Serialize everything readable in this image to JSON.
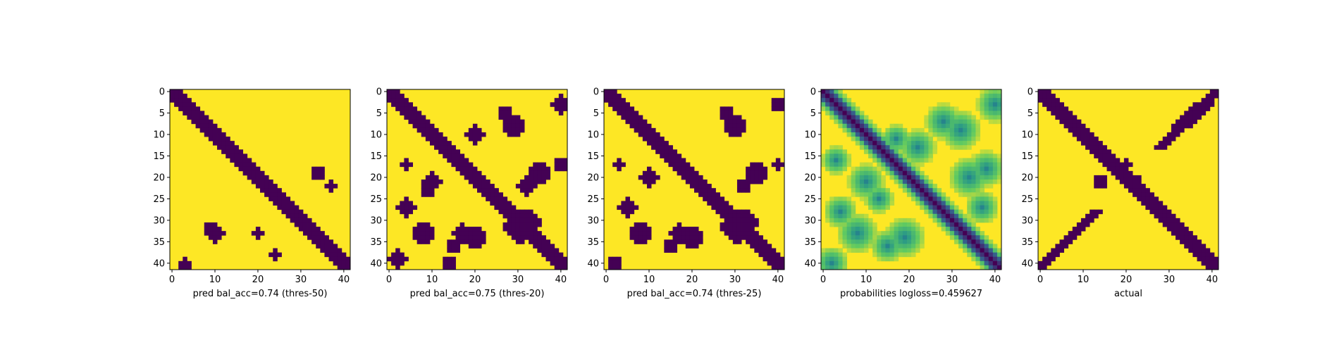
{
  "colors": {
    "dark": "#440154",
    "light": "#fde725",
    "viridis_mid_teal": "#21918c"
  },
  "chart_data": [
    {
      "type": "heatmap",
      "xlabel": "pred bal_acc=0.74 (thres-50)",
      "grid_size": 42,
      "xlim": [
        0,
        41
      ],
      "ylim": [
        41,
        0
      ],
      "xticks": [
        0,
        10,
        20,
        30,
        40
      ],
      "yticks": [
        0,
        5,
        10,
        15,
        20,
        25,
        30,
        35,
        40
      ],
      "colormap": "binary viridis",
      "diag_band_halfwidth": 2,
      "cross_band": false,
      "blobs": [
        [
          40,
          3,
          1.2
        ],
        [
          33,
          10,
          2.0
        ],
        [
          19,
          34,
          1.5
        ],
        [
          22,
          37,
          1.0
        ],
        [
          32,
          9,
          1.5
        ],
        [
          33,
          20,
          1.0
        ],
        [
          38,
          24,
          1.0
        ],
        [
          41,
          3,
          1.0
        ]
      ]
    },
    {
      "type": "heatmap",
      "xlabel": "pred bal_acc=0.75 (thres-20)",
      "grid_size": 42,
      "xlim": [
        0,
        41
      ],
      "ylim": [
        41,
        0
      ],
      "xticks": [
        0,
        10,
        20,
        30,
        40
      ],
      "yticks": [
        0,
        5,
        10,
        15,
        20,
        25,
        30,
        35,
        40
      ],
      "colormap": "binary viridis",
      "diag_band_halfwidth": 2,
      "cross_band": true,
      "blobs": [
        [
          3,
          40,
          2.0
        ],
        [
          8,
          29,
          2.8
        ],
        [
          10,
          20,
          2.0
        ],
        [
          5,
          27,
          1.5
        ],
        [
          17,
          40,
          1.5
        ],
        [
          19,
          35,
          2.5
        ],
        [
          22,
          32,
          2.0
        ],
        [
          21,
          10,
          2.0
        ],
        [
          23,
          9,
          1.5
        ],
        [
          33,
          8,
          2.5
        ],
        [
          27,
          4,
          2.0
        ],
        [
          34,
          20,
          2.5
        ],
        [
          33,
          17,
          2.0
        ],
        [
          36,
          15,
          1.5
        ],
        [
          39,
          2,
          2.0
        ],
        [
          40,
          14,
          1.5
        ],
        [
          17,
          4,
          1.0
        ]
      ]
    },
    {
      "type": "heatmap",
      "xlabel": "pred bal_acc=0.74 (thres-25)",
      "grid_size": 42,
      "xlim": [
        0,
        41
      ],
      "ylim": [
        41,
        0
      ],
      "xticks": [
        0,
        10,
        20,
        30,
        40
      ],
      "yticks": [
        0,
        5,
        10,
        15,
        20,
        25,
        30,
        35,
        40
      ],
      "colormap": "binary viridis",
      "diag_band_halfwidth": 2,
      "cross_band": true,
      "blobs": [
        [
          3,
          40,
          1.5
        ],
        [
          8,
          30,
          2.8
        ],
        [
          5,
          28,
          1.5
        ],
        [
          17,
          40,
          1.2
        ],
        [
          19,
          35,
          2.5
        ],
        [
          22,
          32,
          1.8
        ],
        [
          20,
          10,
          2.0
        ],
        [
          33,
          8,
          2.5
        ],
        [
          27,
          5,
          2.0
        ],
        [
          34,
          20,
          2.5
        ],
        [
          33,
          17,
          2.0
        ],
        [
          36,
          15,
          1.5
        ],
        [
          40,
          2,
          1.5
        ],
        [
          17,
          3,
          1.0
        ]
      ]
    },
    {
      "type": "heatmap",
      "xlabel": "probabilities logloss=0.459627",
      "grid_size": 42,
      "xlim": [
        0,
        41
      ],
      "ylim": [
        41,
        0
      ],
      "xticks": [
        0,
        10,
        20,
        30,
        40
      ],
      "yticks": [
        0,
        5,
        10,
        15,
        20,
        25,
        30,
        35,
        40
      ],
      "colormap": "viridis",
      "diag_band_halfwidth": 2,
      "cross_band": false,
      "blobs": [
        [
          3,
          40,
          2.5
        ],
        [
          7,
          28,
          2.5
        ],
        [
          9,
          32,
          3.0
        ],
        [
          13,
          22,
          2.5
        ],
        [
          18,
          38,
          2.5
        ],
        [
          20,
          34,
          3.0
        ],
        [
          21,
          10,
          2.5
        ],
        [
          28,
          4,
          2.0
        ],
        [
          33,
          8,
          3.0
        ],
        [
          34,
          19,
          3.0
        ],
        [
          36,
          15,
          2.0
        ],
        [
          40,
          2,
          2.0
        ],
        [
          27,
          37,
          2.0
        ],
        [
          16,
          3,
          1.5
        ],
        [
          11,
          17,
          1.5
        ],
        [
          25,
          13,
          1.5
        ]
      ]
    },
    {
      "type": "heatmap",
      "xlabel": "actual",
      "grid_size": 42,
      "xlim": [
        0,
        41
      ],
      "ylim": [
        41,
        0
      ],
      "xticks": [
        0,
        10,
        20,
        30,
        40
      ],
      "yticks": [
        0,
        5,
        10,
        15,
        20,
        25,
        30,
        35,
        40
      ],
      "colormap": "binary viridis",
      "diag_band_halfwidth": 2,
      "cross_band": false,
      "anti_diag_band": true,
      "blobs": [
        [
          21,
          14,
          1.5
        ],
        [
          21,
          22,
          1.5
        ],
        [
          17,
          20,
          1.2
        ]
      ]
    }
  ]
}
